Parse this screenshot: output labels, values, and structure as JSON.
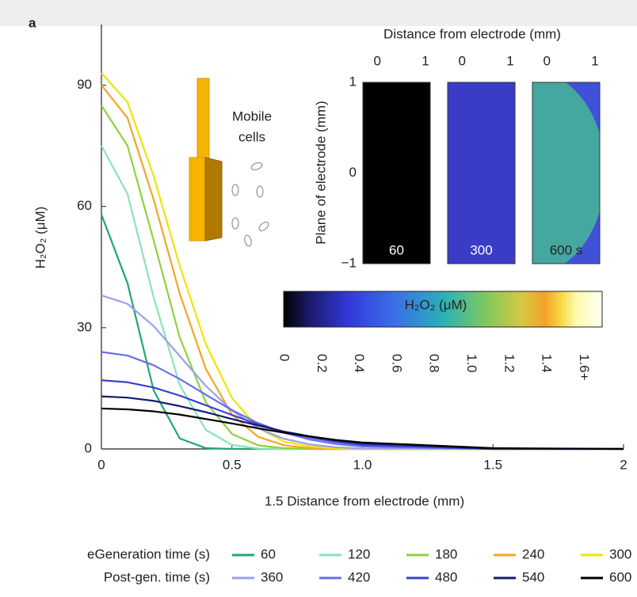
{
  "chart_data": [
    {
      "type": "line",
      "panel_label": "a",
      "xlabel": "1.5 Distance from electrode (mm)",
      "ylabel": "H₂O₂ (μM)",
      "annotations": [
        "Mobile",
        "cells"
      ],
      "legend_titles": [
        "eGeneration time (s)",
        "Post-gen. time (s)"
      ],
      "xlim": [
        0,
        2
      ],
      "ylim": [
        0,
        105
      ],
      "xticks": [
        0,
        0.5,
        {
          "value": 1,
          "label": "1.0"
        },
        1.5,
        2
      ],
      "yticks": [
        0,
        30,
        60,
        90
      ],
      "x": [
        0,
        0.1,
        0.2,
        0.3,
        0.4,
        0.5,
        0.6,
        0.7,
        0.8,
        0.9,
        1.0,
        1.5,
        2
      ],
      "series": [
        {
          "name": "60",
          "color": "#1fa86e",
          "values": [
            58,
            41.0,
            14.5,
            2.6,
            0.2,
            0,
            0,
            0,
            0,
            0,
            0,
            0,
            0
          ]
        },
        {
          "name": "120",
          "color": "#86e6b6",
          "values": [
            75,
            63.1,
            37.5,
            15.8,
            4.7,
            1.0,
            0.1,
            0,
            0,
            0,
            0,
            0,
            0
          ]
        },
        {
          "name": "180",
          "color": "#8fd23c",
          "values": [
            85,
            75.0,
            51.6,
            27.6,
            11.5,
            3.7,
            0.9,
            0.2,
            0,
            0,
            0,
            0,
            0
          ]
        },
        {
          "name": "240",
          "color": "#f3a626",
          "values": [
            90,
            81.9,
            61.7,
            38.4,
            19.8,
            8.5,
            3.0,
            0.9,
            0.2,
            0,
            0,
            0,
            0
          ]
        },
        {
          "name": "300",
          "color": "#f0e400",
          "values": [
            93,
            85.8,
            67.5,
            45.3,
            25.9,
            12.6,
            5.2,
            1.8,
            0.6,
            0.1,
            0,
            0,
            0
          ]
        },
        {
          "name": "360",
          "color": "#9a9ef0",
          "values": [
            38,
            35.9,
            30.4,
            23.0,
            15.6,
            9.5,
            5.1,
            2.5,
            1.1,
            0.4,
            0.1,
            0,
            0
          ]
        },
        {
          "name": "420",
          "color": "#6a6fe4",
          "values": [
            24,
            23.1,
            20.7,
            17.3,
            13.4,
            9.6,
            6.4,
            4.0,
            2.3,
            1.2,
            0.6,
            0,
            0
          ]
        },
        {
          "name": "480",
          "color": "#3b40cf",
          "values": [
            17,
            16.5,
            15.2,
            13.2,
            10.8,
            8.4,
            6.1,
            4.2,
            2.8,
            1.7,
            1.0,
            0,
            0
          ]
        },
        {
          "name": "540",
          "color": "#151b70",
          "values": [
            13,
            12.7,
            11.9,
            10.6,
            9.1,
            7.4,
            5.8,
            4.3,
            3.1,
            2.1,
            1.4,
            0.1,
            0
          ]
        },
        {
          "name": "600",
          "color": "#000000",
          "values": [
            10,
            9.8,
            9.3,
            8.5,
            7.4,
            6.3,
            5.1,
            4.0,
            3.1,
            2.2,
            1.6,
            0.2,
            0
          ]
        }
      ]
    },
    {
      "type": "heatmap",
      "title": "Distance from electrode (mm)",
      "ylabel": "Plane of electrode (mm)",
      "panels": [
        "60",
        "300",
        "600 s"
      ],
      "xlim": [
        -0.3,
        1.1
      ],
      "xticks": [
        0,
        1
      ],
      "ylim": [
        -1,
        1
      ],
      "yticks": [
        1,
        0,
        {
          "value": -1,
          "label": "−1"
        }
      ],
      "colorbar": {
        "title": "H₂O₂ (μM)",
        "lim": [
          0,
          1.7
        ],
        "ticks": [
          0,
          0.2,
          0.4,
          0.6,
          0.8,
          {
            "value": 1,
            "label": "1.0"
          },
          1.2,
          1.4,
          {
            "value": 1.6,
            "label": "1.6+"
          }
        ]
      }
    }
  ]
}
